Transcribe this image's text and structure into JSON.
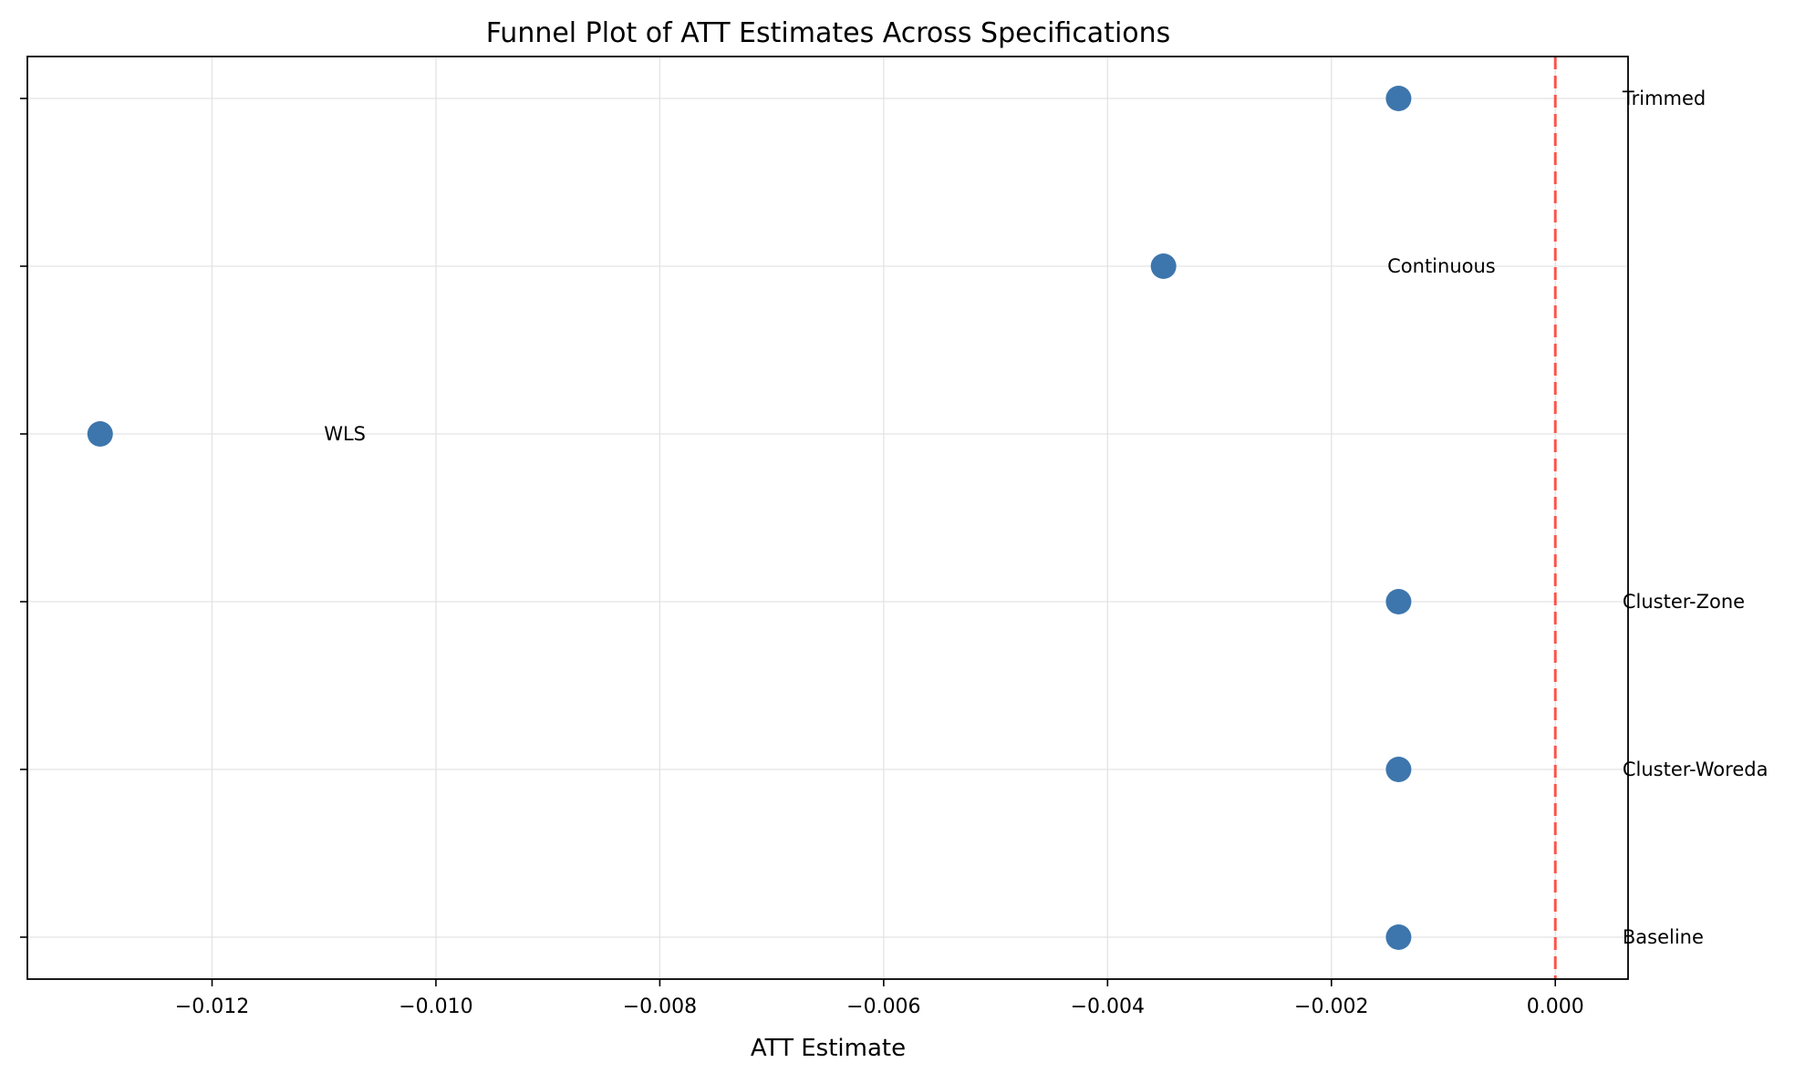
{
  "chart_data": {
    "type": "scatter",
    "title": "Funnel Plot of ATT Estimates Across Specifications",
    "xlabel": "ATT Estimate",
    "ylabel": "",
    "xlim": [
      -0.01365,
      0.00065
    ],
    "ylim": [
      -0.25,
      5.25
    ],
    "xticks": [
      -0.012,
      -0.01,
      -0.008,
      -0.006,
      -0.004,
      -0.002,
      0.0
    ],
    "xtick_labels": [
      "−0.012",
      "−0.010",
      "−0.008",
      "−0.006",
      "−0.004",
      "−0.002",
      "0.000"
    ],
    "yticks": [
      0,
      1,
      2,
      3,
      4,
      5
    ],
    "grid": true,
    "reference_line": {
      "x": 0.0,
      "color": "#ff3b30",
      "style": "dashed"
    },
    "marker_color": "#3d76ad",
    "points": [
      {
        "label": "Baseline",
        "x": -0.0014,
        "y": 0,
        "label_x": 0.0006
      },
      {
        "label": "Cluster-Woreda",
        "x": -0.0014,
        "y": 1,
        "label_x": 0.0006
      },
      {
        "label": "Cluster-Zone",
        "x": -0.0014,
        "y": 2,
        "label_x": 0.0006
      },
      {
        "label": "WLS",
        "x": -0.013,
        "y": 3,
        "label_x": -0.011
      },
      {
        "label": "Continuous",
        "x": -0.0035,
        "y": 4,
        "label_x": -0.0015
      },
      {
        "label": "Trimmed",
        "x": -0.0014,
        "y": 5,
        "label_x": 0.0006
      }
    ]
  }
}
